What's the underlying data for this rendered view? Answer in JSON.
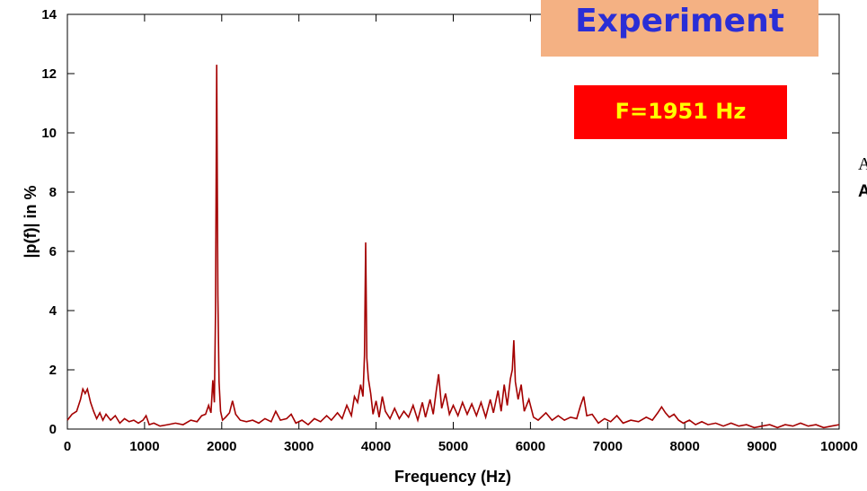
{
  "chart_data": {
    "type": "line",
    "title": "",
    "xlabel": "Frequency (Hz)",
    "ylabel": "|p(f)| in %",
    "xlim": [
      0,
      10000
    ],
    "ylim": [
      0,
      14
    ],
    "xticks": [
      "0",
      "1000",
      "2000",
      "3000",
      "4000",
      "5000",
      "6000",
      "7000",
      "8000",
      "9000",
      "10000"
    ],
    "yticks": [
      "0",
      "2",
      "4",
      "6",
      "8",
      "10",
      "12",
      "14"
    ],
    "grid": false,
    "series": [
      {
        "color": "#a40000",
        "points": [
          [
            0,
            0.3
          ],
          [
            60,
            0.5
          ],
          [
            120,
            0.6
          ],
          [
            170,
            1.0
          ],
          [
            200,
            1.35
          ],
          [
            230,
            1.2
          ],
          [
            260,
            1.35
          ],
          [
            300,
            0.9
          ],
          [
            340,
            0.6
          ],
          [
            380,
            0.35
          ],
          [
            420,
            0.55
          ],
          [
            460,
            0.3
          ],
          [
            500,
            0.5
          ],
          [
            560,
            0.3
          ],
          [
            620,
            0.45
          ],
          [
            680,
            0.2
          ],
          [
            740,
            0.35
          ],
          [
            800,
            0.25
          ],
          [
            860,
            0.3
          ],
          [
            920,
            0.2
          ],
          [
            980,
            0.3
          ],
          [
            1020,
            0.45
          ],
          [
            1060,
            0.15
          ],
          [
            1120,
            0.2
          ],
          [
            1200,
            0.1
          ],
          [
            1300,
            0.15
          ],
          [
            1400,
            0.2
          ],
          [
            1500,
            0.15
          ],
          [
            1600,
            0.3
          ],
          [
            1680,
            0.25
          ],
          [
            1740,
            0.45
          ],
          [
            1790,
            0.5
          ],
          [
            1830,
            0.8
          ],
          [
            1860,
            0.55
          ],
          [
            1885,
            1.65
          ],
          [
            1905,
            0.9
          ],
          [
            1920,
            4.0
          ],
          [
            1935,
            12.3
          ],
          [
            1950,
            4.5
          ],
          [
            1965,
            1.6
          ],
          [
            1985,
            0.6
          ],
          [
            2010,
            0.3
          ],
          [
            2050,
            0.4
          ],
          [
            2100,
            0.55
          ],
          [
            2140,
            0.95
          ],
          [
            2180,
            0.5
          ],
          [
            2240,
            0.3
          ],
          [
            2320,
            0.25
          ],
          [
            2400,
            0.3
          ],
          [
            2480,
            0.2
          ],
          [
            2560,
            0.35
          ],
          [
            2640,
            0.25
          ],
          [
            2700,
            0.6
          ],
          [
            2760,
            0.3
          ],
          [
            2840,
            0.35
          ],
          [
            2900,
            0.5
          ],
          [
            2960,
            0.2
          ],
          [
            3040,
            0.3
          ],
          [
            3120,
            0.15
          ],
          [
            3200,
            0.35
          ],
          [
            3280,
            0.25
          ],
          [
            3360,
            0.45
          ],
          [
            3420,
            0.3
          ],
          [
            3500,
            0.55
          ],
          [
            3560,
            0.35
          ],
          [
            3620,
            0.8
          ],
          [
            3680,
            0.45
          ],
          [
            3720,
            1.1
          ],
          [
            3760,
            0.9
          ],
          [
            3800,
            1.5
          ],
          [
            3830,
            1.1
          ],
          [
            3850,
            2.5
          ],
          [
            3865,
            6.3
          ],
          [
            3880,
            2.4
          ],
          [
            3900,
            1.7
          ],
          [
            3930,
            1.2
          ],
          [
            3960,
            0.5
          ],
          [
            4000,
            0.95
          ],
          [
            4040,
            0.4
          ],
          [
            4080,
            1.1
          ],
          [
            4120,
            0.6
          ],
          [
            4180,
            0.35
          ],
          [
            4240,
            0.7
          ],
          [
            4300,
            0.35
          ],
          [
            4360,
            0.6
          ],
          [
            4420,
            0.4
          ],
          [
            4480,
            0.8
          ],
          [
            4540,
            0.3
          ],
          [
            4600,
            0.9
          ],
          [
            4640,
            0.4
          ],
          [
            4700,
            1.0
          ],
          [
            4740,
            0.5
          ],
          [
            4780,
            1.3
          ],
          [
            4810,
            1.85
          ],
          [
            4850,
            0.7
          ],
          [
            4900,
            1.2
          ],
          [
            4950,
            0.5
          ],
          [
            5000,
            0.8
          ],
          [
            5060,
            0.45
          ],
          [
            5120,
            0.9
          ],
          [
            5180,
            0.5
          ],
          [
            5240,
            0.85
          ],
          [
            5300,
            0.45
          ],
          [
            5360,
            0.9
          ],
          [
            5420,
            0.4
          ],
          [
            5480,
            1.0
          ],
          [
            5520,
            0.55
          ],
          [
            5580,
            1.3
          ],
          [
            5620,
            0.6
          ],
          [
            5660,
            1.5
          ],
          [
            5700,
            0.8
          ],
          [
            5740,
            1.7
          ],
          [
            5765,
            2.0
          ],
          [
            5785,
            3.0
          ],
          [
            5805,
            1.6
          ],
          [
            5840,
            1.0
          ],
          [
            5880,
            1.5
          ],
          [
            5920,
            0.6
          ],
          [
            5980,
            1.0
          ],
          [
            6040,
            0.4
          ],
          [
            6100,
            0.3
          ],
          [
            6200,
            0.55
          ],
          [
            6280,
            0.3
          ],
          [
            6360,
            0.45
          ],
          [
            6440,
            0.3
          ],
          [
            6520,
            0.4
          ],
          [
            6600,
            0.35
          ],
          [
            6650,
            0.8
          ],
          [
            6690,
            1.1
          ],
          [
            6730,
            0.45
          ],
          [
            6800,
            0.5
          ],
          [
            6880,
            0.2
          ],
          [
            6960,
            0.35
          ],
          [
            7040,
            0.25
          ],
          [
            7120,
            0.45
          ],
          [
            7200,
            0.2
          ],
          [
            7300,
            0.3
          ],
          [
            7400,
            0.25
          ],
          [
            7500,
            0.4
          ],
          [
            7580,
            0.3
          ],
          [
            7650,
            0.55
          ],
          [
            7700,
            0.75
          ],
          [
            7750,
            0.55
          ],
          [
            7800,
            0.4
          ],
          [
            7860,
            0.5
          ],
          [
            7920,
            0.3
          ],
          [
            7980,
            0.2
          ],
          [
            8060,
            0.3
          ],
          [
            8140,
            0.15
          ],
          [
            8220,
            0.25
          ],
          [
            8300,
            0.15
          ],
          [
            8400,
            0.2
          ],
          [
            8500,
            0.1
          ],
          [
            8600,
            0.2
          ],
          [
            8700,
            0.1
          ],
          [
            8800,
            0.15
          ],
          [
            8900,
            0.05
          ],
          [
            9000,
            0.1
          ],
          [
            9100,
            0.15
          ],
          [
            9200,
            0.05
          ],
          [
            9300,
            0.15
          ],
          [
            9400,
            0.1
          ],
          [
            9500,
            0.2
          ],
          [
            9600,
            0.1
          ],
          [
            9700,
            0.15
          ],
          [
            9800,
            0.05
          ],
          [
            9900,
            0.1
          ],
          [
            10000,
            0.15
          ]
        ]
      }
    ]
  },
  "annotations": {
    "experiment_label": "Experiment",
    "frequency_label": "F=1951 Hz",
    "colors": {
      "experiment_bg": "#f4b183",
      "experiment_text": "#2a2ed6",
      "frequency_bg": "#ff0000",
      "frequency_text": "#ffff00"
    }
  },
  "edge_text": {
    "line1": "A",
    "line2": "A"
  }
}
